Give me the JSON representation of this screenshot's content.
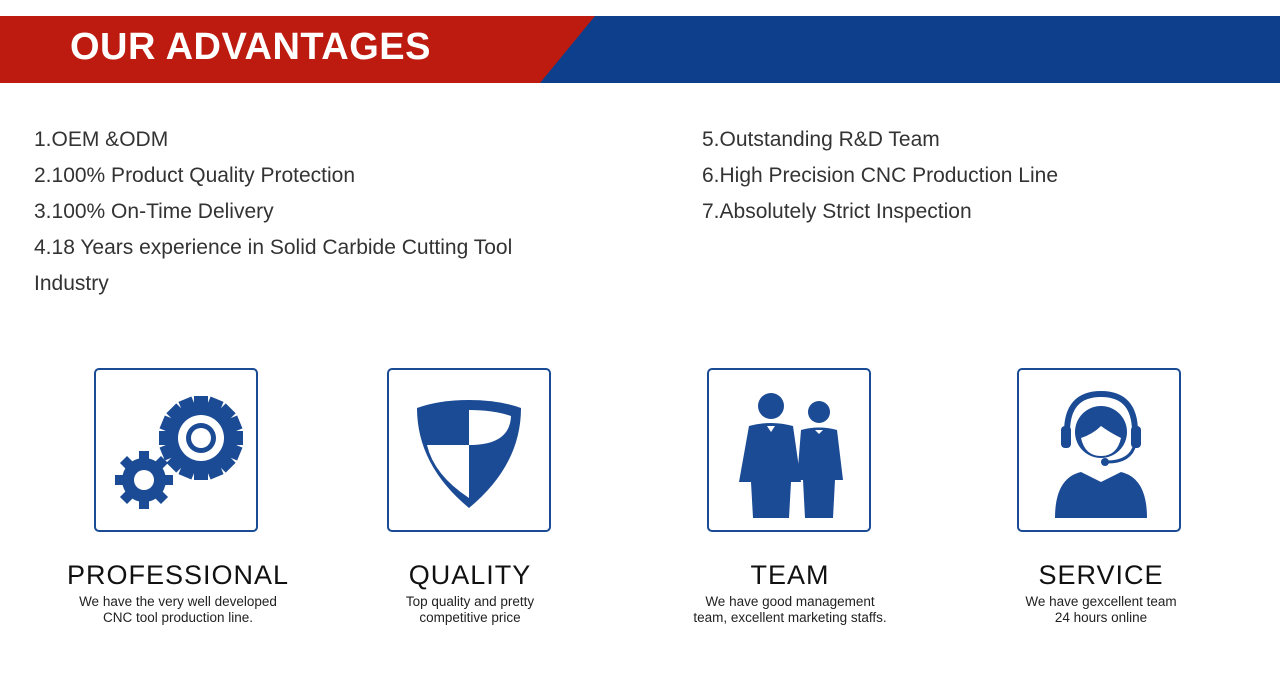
{
  "header": {
    "title": "OUR ADVANTAGES",
    "colors": {
      "red": "#bd1a10",
      "blue": "#0d3f8c"
    }
  },
  "advantages_left": [
    "1.OEM &ODM",
    "2.100% Product Quality Protection",
    "3.100% On-Time Delivery",
    "4.18 Years experience in Solid Carbide Cutting Tool",
    "Industry"
  ],
  "advantages_right": [
    "5.Outstanding R&D Team",
    "6.High Precision CNC Production Line",
    "7.Absolutely Strict Inspection"
  ],
  "features": [
    {
      "icon": "gears-icon",
      "title": "PROFESSIONAL",
      "desc1": "We have the very well developed",
      "desc2": "CNC tool production line."
    },
    {
      "icon": "shield-icon",
      "title": "QUALITY",
      "desc1": "Top quality and pretty",
      "desc2": "competitive price"
    },
    {
      "icon": "team-icon",
      "title": "TEAM",
      "desc1": "We have good management",
      "desc2": "team, excellent marketing staffs."
    },
    {
      "icon": "headset-icon",
      "title": "SERVICE",
      "desc1": "We have gexcellent team",
      "desc2": "24 hours online"
    }
  ],
  "icon_color": "#1b4b94"
}
